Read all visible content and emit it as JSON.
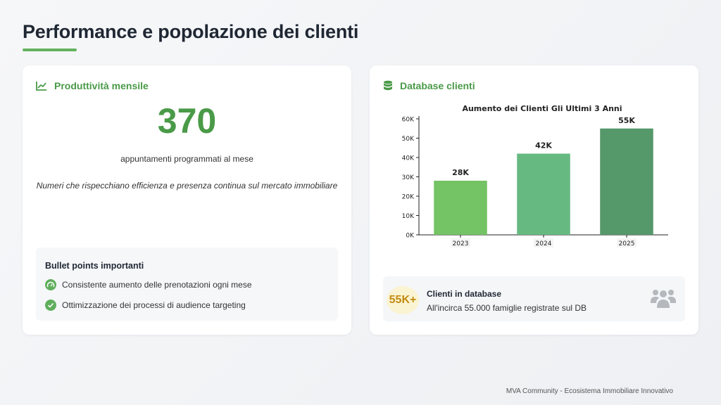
{
  "page": {
    "title": "Performance e popolazione dei clienti",
    "accent_color": "#63b25f"
  },
  "left_card": {
    "header_icon": "line-chart-icon",
    "header": "Produttività mensile",
    "big_number": "370",
    "caption": "appuntamenti programmati al mese",
    "note": "Numeri che rispecchiano efficienza e presenza continua sul mercato immobiliare",
    "bullets": {
      "title": "Bullet points importanti",
      "items": [
        {
          "icon": "gauge-icon",
          "text": "Consistente aumento delle prenotazioni ogni mese"
        },
        {
          "icon": "check-circle-icon",
          "text": "Ottimizzazione dei processi di audience targeting"
        }
      ]
    }
  },
  "right_card": {
    "header_icon": "database-icon",
    "header": "Database clienti",
    "db_summary": {
      "badge": "55K+",
      "title": "Clienti in database",
      "description": "All'incirca 55.000 famiglie registrate sul DB",
      "icon": "users-icon"
    }
  },
  "chart_data": {
    "type": "bar",
    "title": "Aumento dei Clienti Gli Ultimi 3 Anni",
    "categories": [
      "2023",
      "2024",
      "2025"
    ],
    "values": [
      28000,
      42000,
      55000
    ],
    "data_labels": [
      "28K",
      "42K",
      "55K"
    ],
    "colors": [
      "#74c365",
      "#66b981",
      "#55986a"
    ],
    "ylim": [
      0,
      60000
    ],
    "yticks": [
      0,
      10000,
      20000,
      30000,
      40000,
      50000,
      60000
    ],
    "ytick_labels": [
      "0K",
      "10K",
      "20K",
      "30K",
      "40K",
      "50K",
      "60K"
    ],
    "xlabel": "",
    "ylabel": "",
    "grid": false
  },
  "footer": "MVA Community - Ecosistema Immobiliare Innovativo"
}
